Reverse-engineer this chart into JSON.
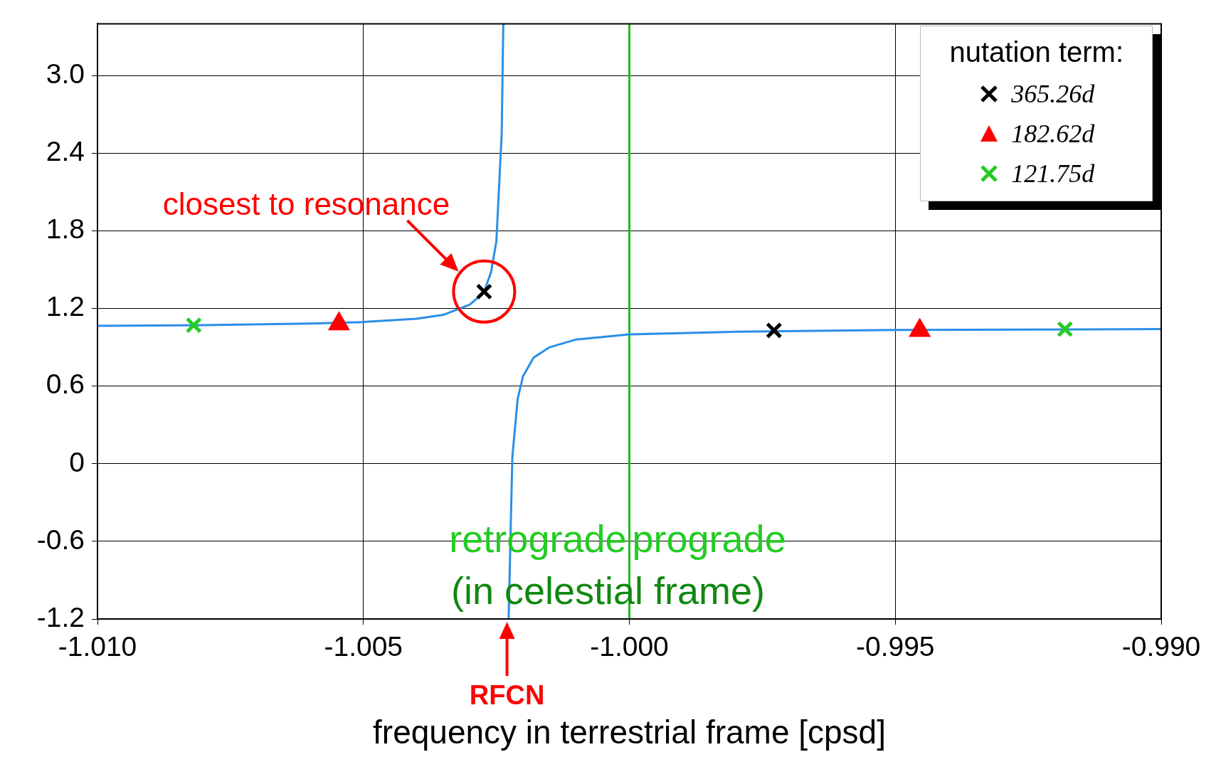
{
  "chart_data": {
    "type": "line",
    "xlabel": "frequency in terrestrial frame [cpsd]",
    "xlim": [
      -1.01,
      -0.99
    ],
    "xticks": [
      {
        "value": -1.01,
        "label": "-1.010"
      },
      {
        "value": -1.005,
        "label": "-1.005"
      },
      {
        "value": -1.0,
        "label": "-1.000"
      },
      {
        "value": -0.995,
        "label": "-0.995"
      },
      {
        "value": -0.99,
        "label": "-0.990"
      }
    ],
    "ylim": [
      -1.2,
      3.4
    ],
    "yticks": [
      -1.2,
      -0.6,
      0,
      0.6,
      1.2,
      1.8,
      2.4,
      {
        "value": 3.0,
        "label": "3.0"
      }
    ],
    "grid": true,
    "legend": "top right",
    "legend_title": "nutation term:",
    "series": [
      {
        "color": "#2a8fe8",
        "marker": "none",
        "x": [
          -1.01,
          -1.008,
          -1.006,
          -1.005,
          -1.004,
          -1.0035,
          -1.003,
          -1.0028,
          -1.00273,
          -1.0026,
          -1.0025,
          -1.0024,
          -1.00237,
          -1.00232,
          -1.00227,
          -1.0022,
          -1.0021,
          -1.002,
          -1.0018,
          -1.0015,
          -1.001,
          -1.0,
          -0.998,
          -0.995,
          -0.99
        ],
        "values": [
          1.066,
          1.071,
          1.083,
          1.095,
          1.12,
          1.15,
          1.23,
          1.3,
          1.33,
          1.48,
          1.72,
          2.55,
          3.4,
          null,
          -1.2,
          0.05,
          0.5,
          0.675,
          0.82,
          0.9,
          0.96,
          1.0,
          1.02,
          1.034,
          1.04
        ]
      },
      {
        "type": "scatter",
        "name": "365.26d",
        "color": "#000000",
        "marker": "cross",
        "x": [
          -1.00273,
          -0.99728
        ],
        "values": [
          1.33,
          1.03
        ]
      },
      {
        "type": "scatter",
        "name": "182.62d",
        "color": "#ff0000",
        "marker": "triangle",
        "x": [
          -1.00546,
          -0.99454
        ],
        "values": [
          1.08,
          1.03
        ]
      },
      {
        "type": "scatter",
        "name": "121.75d",
        "color": "#22cc22",
        "marker": "cross",
        "x": [
          -1.00819,
          -0.99181
        ],
        "values": [
          1.07,
          1.04
        ]
      }
    ],
    "ref_lines": [
      {
        "axis": "x",
        "value": -1.0,
        "color": "#22bb22"
      }
    ],
    "annotations": [
      {
        "text": "closest to resonance",
        "x": -1.00273,
        "y": 1.33
      },
      {
        "text": "RFCN",
        "x": -1.0023,
        "y": -1.2
      },
      {
        "text": "retrograde",
        "x": -1.0,
        "y": -0.6
      },
      {
        "text": "prograde",
        "x": -1.0,
        "y": -0.6
      },
      {
        "text": "(in celestial frame)",
        "x": -1.0,
        "y": -1.0
      }
    ]
  }
}
